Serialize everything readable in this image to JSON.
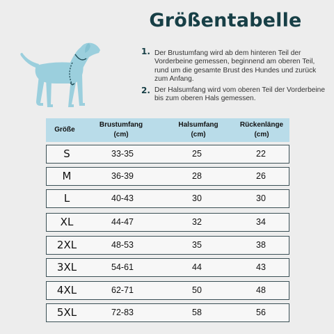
{
  "title": "Größentabelle",
  "instructions": [
    {
      "number": "1.",
      "text": "Der Brustumfang wird ab dem hinteren Teil der Vorderbeine gemessen, beginnend am oberen Teil, rund um die gesamte Brust des Hundes und zurück zum Anfang."
    },
    {
      "number": "2.",
      "text": "Der Halsumfang wird vom oberen Teil der Vorderbeine bis zum oberen Hals gemessen."
    }
  ],
  "illustration": {
    "icon": "dog-measurement-icon",
    "dog_color": "#9bcfdd",
    "line_color": "#1f4a55"
  },
  "table": {
    "headers": [
      {
        "line1": "Größe",
        "line2": ""
      },
      {
        "line1": "Brustumfang",
        "line2": "(cm)"
      },
      {
        "line1": "Halsumfang",
        "line2": "(cm)"
      },
      {
        "line1": "Rückenlänge",
        "line2": "(cm)"
      }
    ],
    "rows": [
      [
        "S",
        "33-35",
        "25",
        "22"
      ],
      [
        "M",
        "36-39",
        "28",
        "26"
      ],
      [
        "L",
        "40-43",
        "30",
        "30"
      ],
      [
        "XL",
        "44-47",
        "32",
        "34"
      ],
      [
        "2XL",
        "48-53",
        "35",
        "38"
      ],
      [
        "3XL",
        "54-61",
        "44",
        "43"
      ],
      [
        "4XL",
        "62-71",
        "50",
        "48"
      ],
      [
        "5XL",
        "72-83",
        "58",
        "56"
      ]
    ]
  },
  "colors": {
    "title": "#173f46",
    "header_bg": "#b9dce9",
    "row_border": "#3a4f55",
    "background": "#ededed"
  }
}
